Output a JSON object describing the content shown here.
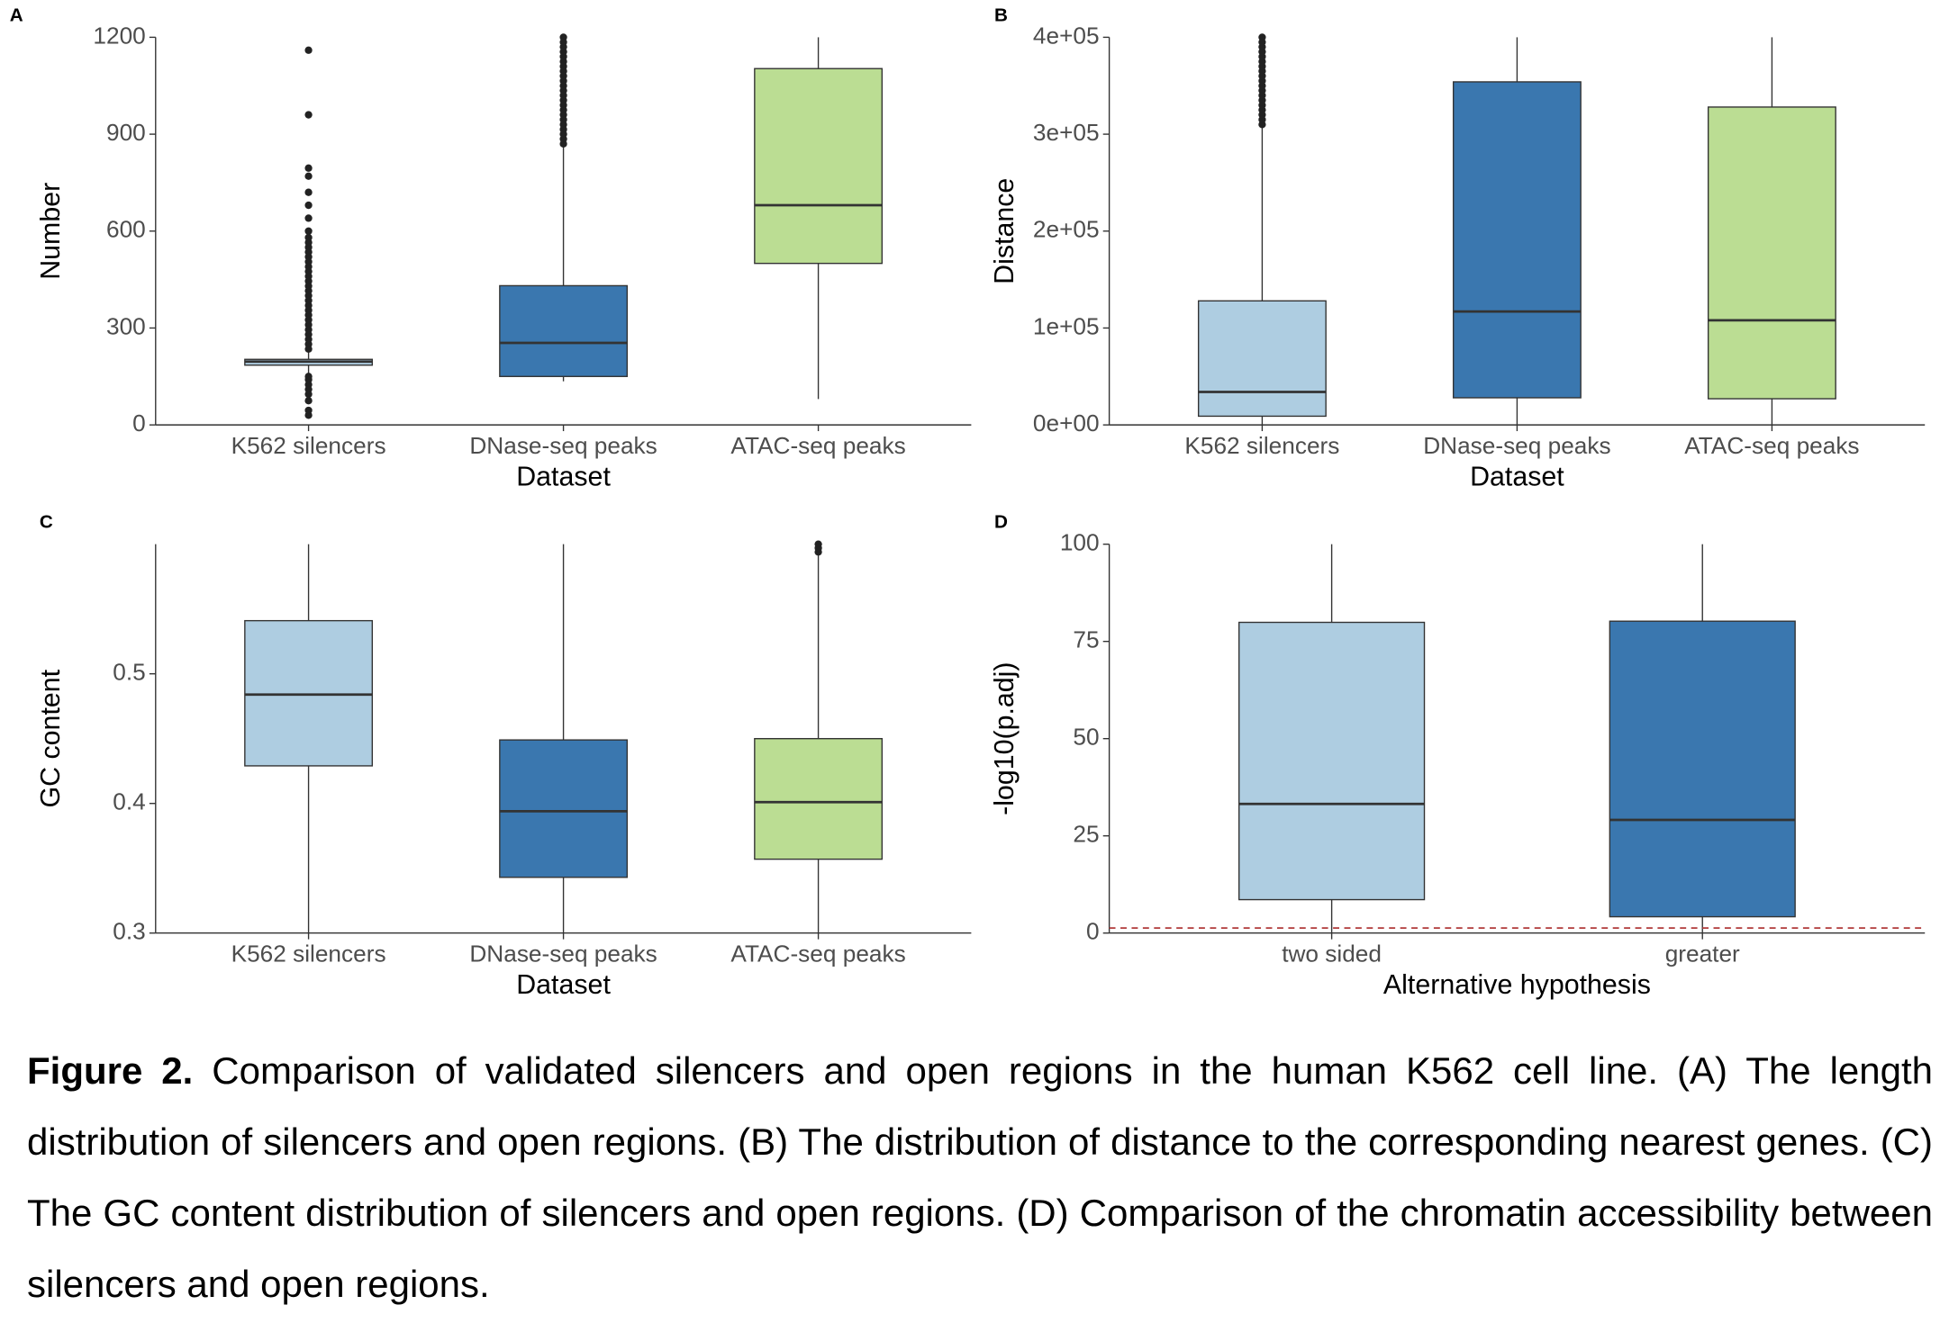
{
  "chart_data": [
    {
      "type": "box",
      "panel": "A",
      "x_label": "Dataset",
      "y_label": "Number",
      "categories": [
        "K562 silencers",
        "DNase-seq peaks",
        "ATAC-seq peaks"
      ],
      "colors": [
        "#aecde1",
        "#3a77af",
        "#bbdd93"
      ],
      "boxes": [
        {
          "min": 160,
          "q1": 185,
          "median": 196,
          "q3": 203,
          "max": 230,
          "outliers": [
            30,
            45,
            75,
            95,
            110,
            125,
            140,
            150,
            235,
            250,
            265,
            280,
            295,
            310,
            325,
            340,
            355,
            370,
            385,
            400,
            415,
            430,
            445,
            460,
            475,
            490,
            505,
            520,
            535,
            550,
            565,
            580,
            600,
            640,
            680,
            720,
            770,
            795,
            960,
            1160
          ]
        },
        {
          "min": 135,
          "q1": 150,
          "median": 254,
          "q3": 431,
          "max": 860,
          "outliers": [
            870,
            885,
            900,
            915,
            930,
            945,
            960,
            975,
            990,
            1005,
            1020,
            1035,
            1050,
            1065,
            1080,
            1095,
            1110,
            1125,
            1140,
            1155,
            1170,
            1185,
            1200
          ]
        },
        {
          "min": 80,
          "q1": 500,
          "median": 680,
          "q3": 1103,
          "max": 1200,
          "outliers": []
        }
      ],
      "ylim": [
        0,
        1200
      ],
      "yticks": [
        0,
        300,
        600,
        900,
        1200
      ]
    },
    {
      "type": "box",
      "panel": "B",
      "x_label": "Dataset",
      "y_label": "Distance",
      "categories": [
        "K562 silencers",
        "DNase-seq peaks",
        "ATAC-seq peaks"
      ],
      "colors": [
        "#aecde1",
        "#3a77af",
        "#bbdd93"
      ],
      "boxes": [
        {
          "min": 0,
          "q1": 9000,
          "median": 34000,
          "q3": 128000,
          "max": 308000,
          "outliers": [
            310000,
            315000,
            320000,
            325000,
            330000,
            335000,
            340000,
            345000,
            350000,
            355000,
            360000,
            365000,
            370000,
            375000,
            380000,
            385000,
            390000,
            395000,
            400000
          ]
        },
        {
          "min": 0,
          "q1": 28000,
          "median": 117000,
          "q3": 354000,
          "max": 400000,
          "outliers": []
        },
        {
          "min": 0,
          "q1": 27000,
          "median": 108000,
          "q3": 328000,
          "max": 400000,
          "outliers": []
        }
      ],
      "ylim": [
        0,
        400000
      ],
      "yticks": [
        {
          "value": 0,
          "label": "0e+00"
        },
        {
          "value": 100000,
          "label": "1e+05"
        },
        {
          "value": 200000,
          "label": "2e+05"
        },
        {
          "value": 300000,
          "label": "3e+05"
        },
        {
          "value": 400000,
          "label": "4e+05"
        }
      ]
    },
    {
      "type": "box",
      "panel": "C",
      "x_label": "Dataset",
      "y_label": "GC content",
      "categories": [
        "K562 silencers",
        "DNase-seq peaks",
        "ATAC-seq peaks"
      ],
      "colors": [
        "#aecde1",
        "#3a77af",
        "#bbdd93"
      ],
      "boxes": [
        {
          "min": 0.3,
          "q1": 0.429,
          "median": 0.484,
          "q3": 0.541,
          "max": 0.6,
          "outliers": []
        },
        {
          "min": 0.3,
          "q1": 0.343,
          "median": 0.394,
          "q3": 0.449,
          "max": 0.6,
          "outliers": []
        },
        {
          "min": 0.3,
          "q1": 0.357,
          "median": 0.401,
          "q3": 0.45,
          "max": 0.592,
          "outliers": [
            0.594,
            0.597,
            0.6
          ]
        }
      ],
      "ylim": [
        0.3,
        0.6
      ],
      "yticks": [
        0.3,
        0.4,
        0.5
      ]
    },
    {
      "type": "box",
      "panel": "D",
      "x_label": "Alternative hypothesis",
      "y_label": "-log10(p.adj)",
      "categories": [
        "two sided",
        "greater"
      ],
      "colors": [
        "#aecde1",
        "#3a77af"
      ],
      "boxes": [
        {
          "min": 0,
          "q1": 8.6,
          "median": 33.2,
          "q3": 79.9,
          "max": 100,
          "outliers": []
        },
        {
          "min": 0,
          "q1": 4.2,
          "median": 29.1,
          "q3": 80.2,
          "max": 100,
          "outliers": []
        }
      ],
      "hline": {
        "value": 1.3,
        "color": "#b03a3a"
      },
      "ylim": [
        0,
        100
      ],
      "yticks": [
        0,
        25,
        50,
        75,
        100
      ]
    }
  ],
  "caption": {
    "label": "Figure 2.",
    "text": " Comparison of validated silencers and open regions in the human K562 cell line. (A) The length distribution of silencers and open regions. (B) The distribution of distance to the corresponding nearest genes. (C) The GC content distribution of silencers and open regions. (D) Comparison of the chromatin accessibility between silencers and open regions."
  }
}
